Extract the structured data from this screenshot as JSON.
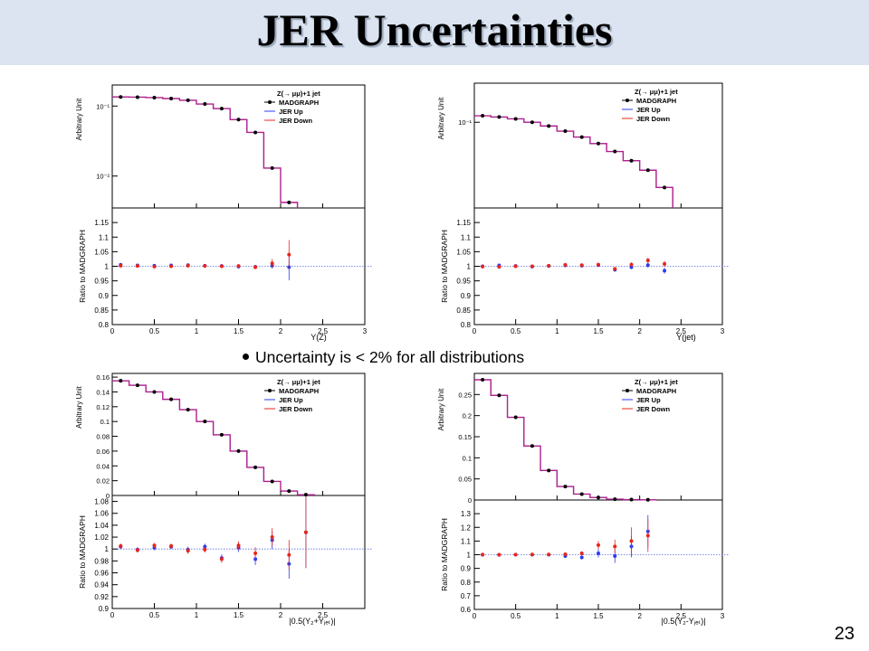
{
  "slide": {
    "title": "JER Uncertainties",
    "bullet": "Uncertainty is < 2% for all distributions",
    "page_number": "23"
  },
  "colors": {
    "nominal": "#000000",
    "jer_up": "#2b3cf2",
    "jer_down": "#e8251c",
    "hist_line": "#b0208c",
    "reference_line": "#5a6ee0"
  },
  "legend": {
    "title": "Z(→ μμ)+1 jet",
    "entries": [
      "MADGRAPH",
      "JER Up",
      "JER Down"
    ]
  },
  "chart_data": [
    {
      "type": "line",
      "panel_position": "top-left",
      "xlabel": "Y(Z)",
      "top": {
        "ylabel": "Arbitrary Unit",
        "yscale": "log",
        "ylim": [
          0.0035,
          0.2
        ],
        "yticks": [
          {
            "v": 0.1,
            "t": "10⁻¹"
          },
          {
            "v": 0.01,
            "t": "10⁻²"
          }
        ],
        "edges": [
          0,
          0.2,
          0.4,
          0.6,
          0.8,
          1.0,
          1.2,
          1.4,
          1.6,
          1.8,
          2.0,
          2.2
        ],
        "values": [
          0.135,
          0.134,
          0.132,
          0.128,
          0.121,
          0.107,
          0.092,
          0.064,
          0.042,
          0.013,
          0.0042
        ]
      },
      "ratio": {
        "ylabel": "Ratio to MADGRAPH",
        "ylim": [
          0.8,
          1.2
        ],
        "yticks": [
          0.8,
          0.85,
          0.9,
          0.95,
          1,
          1.05,
          1.1,
          1.15
        ],
        "yticklabels": [
          "0.8",
          "0.85",
          "0.9",
          "0.95",
          "1",
          "1.05",
          "1.1",
          "1.15"
        ],
        "x": [
          0.1,
          0.3,
          0.5,
          0.7,
          0.9,
          1.1,
          1.3,
          1.5,
          1.7,
          1.9,
          2.1
        ],
        "up": [
          1.005,
          1.003,
          1.002,
          1.003,
          1.004,
          1.002,
          1.001,
          0.999,
          0.998,
          1.002,
          0.997
        ],
        "up_err": [
          0.003,
          0.003,
          0.003,
          0.003,
          0.003,
          0.004,
          0.004,
          0.005,
          0.007,
          0.01,
          0.045
        ],
        "down": [
          1.002,
          1.001,
          0.999,
          1.0,
          1.002,
          1.001,
          1.0,
          1.001,
          0.997,
          1.01,
          1.04
        ],
        "down_err": [
          0.003,
          0.003,
          0.003,
          0.003,
          0.003,
          0.004,
          0.004,
          0.005,
          0.007,
          0.015,
          0.05
        ]
      },
      "xlim": [
        0,
        3
      ],
      "xticks": [
        0,
        0.5,
        1,
        1.5,
        2,
        2.5,
        3
      ],
      "xticklabels": [
        "0",
        "0.5",
        "1",
        "1.5",
        "2",
        "2.5",
        "3"
      ]
    },
    {
      "type": "line",
      "panel_position": "top-right",
      "xlabel": "Y(jet)",
      "top": {
        "ylabel": "Arbitrary Unit",
        "yscale": "log",
        "ylim": [
          0.009,
          0.3
        ],
        "yticks": [
          {
            "v": 0.1,
            "t": "10⁻¹"
          }
        ],
        "edges": [
          0,
          0.2,
          0.4,
          0.6,
          0.8,
          1.0,
          1.2,
          1.4,
          1.6,
          1.8,
          2.0,
          2.2,
          2.4
        ],
        "values": [
          0.12,
          0.116,
          0.11,
          0.1,
          0.09,
          0.078,
          0.066,
          0.055,
          0.044,
          0.034,
          0.026,
          0.016
        ]
      },
      "ratio": {
        "ylabel": "Ratio to MADGRAPH",
        "ylim": [
          0.8,
          1.2
        ],
        "yticks": [
          0.8,
          0.85,
          0.9,
          0.95,
          1,
          1.05,
          1.1,
          1.15
        ],
        "yticklabels": [
          "0.8",
          "0.85",
          "0.9",
          "0.95",
          "1",
          "1.05",
          "1.1",
          "1.15"
        ],
        "x": [
          0.1,
          0.3,
          0.5,
          0.7,
          0.9,
          1.1,
          1.3,
          1.5,
          1.7,
          1.9,
          2.1,
          2.3
        ],
        "up": [
          1.0,
          1.003,
          1.001,
          0.999,
          1.001,
          1.003,
          1.002,
          1.004,
          0.988,
          0.997,
          1.004,
          0.985
        ],
        "up_err": [
          0.004,
          0.004,
          0.004,
          0.004,
          0.004,
          0.004,
          0.005,
          0.005,
          0.006,
          0.007,
          0.009,
          0.01
        ],
        "down": [
          0.999,
          0.998,
          1.0,
          1.0,
          1.002,
          1.005,
          1.004,
          1.006,
          0.991,
          1.006,
          1.02,
          1.008
        ],
        "down_err": [
          0.004,
          0.004,
          0.004,
          0.004,
          0.004,
          0.004,
          0.005,
          0.005,
          0.006,
          0.007,
          0.009,
          0.01
        ]
      },
      "xlim": [
        0,
        3
      ],
      "xticks": [
        0,
        0.5,
        1,
        1.5,
        2,
        2.5,
        3
      ],
      "xticklabels": [
        "0",
        "0.5",
        "1",
        "1.5",
        "2",
        "2.5",
        "3"
      ]
    },
    {
      "type": "line",
      "panel_position": "bottom-left",
      "xlabel": "|0.5(Y₂+Yⱼₑₜ)|",
      "top": {
        "ylabel": "Arbitrary Unit",
        "yscale": "linear",
        "ylim": [
          0,
          0.165
        ],
        "yticks": [
          {
            "v": 0,
            "t": "0"
          },
          {
            "v": 0.02,
            "t": "0.02"
          },
          {
            "v": 0.04,
            "t": "0.04"
          },
          {
            "v": 0.06,
            "t": "0.06"
          },
          {
            "v": 0.08,
            "t": "0.08"
          },
          {
            "v": 0.1,
            "t": "0.1"
          },
          {
            "v": 0.12,
            "t": "0.12"
          },
          {
            "v": 0.14,
            "t": "0.14"
          },
          {
            "v": 0.16,
            "t": "0.16"
          }
        ],
        "edges": [
          0,
          0.2,
          0.4,
          0.6,
          0.8,
          1.0,
          1.2,
          1.4,
          1.6,
          1.8,
          2.0,
          2.2,
          2.4
        ],
        "values": [
          0.155,
          0.149,
          0.14,
          0.13,
          0.116,
          0.1,
          0.082,
          0.06,
          0.038,
          0.019,
          0.006,
          0.001
        ]
      },
      "ratio": {
        "ylabel": "Ratio to MADGRAPH",
        "ylim": [
          0.9,
          1.09
        ],
        "yticks": [
          0.9,
          0.92,
          0.94,
          0.96,
          0.98,
          1,
          1.02,
          1.04,
          1.06,
          1.08
        ],
        "yticklabels": [
          "0.9",
          "0.92",
          "0.94",
          "0.96",
          "0.98",
          "1",
          "1.02",
          "1.04",
          "1.06",
          "1.08"
        ],
        "x": [
          0.1,
          0.3,
          0.5,
          0.7,
          0.9,
          1.1,
          1.3,
          1.5,
          1.7,
          1.9,
          2.1,
          2.3
        ],
        "up": [
          1.004,
          0.999,
          1.002,
          1.004,
          0.999,
          1.004,
          0.985,
          1.002,
          0.983,
          1.015,
          0.975,
          1.028
        ],
        "up_err": [
          0.004,
          0.004,
          0.004,
          0.004,
          0.005,
          0.005,
          0.006,
          0.007,
          0.01,
          0.015,
          0.025,
          0.06
        ],
        "down": [
          1.005,
          0.998,
          1.006,
          1.005,
          0.997,
          0.999,
          0.983,
          1.006,
          0.993,
          1.02,
          0.99,
          1.028
        ],
        "down_err": [
          0.004,
          0.004,
          0.004,
          0.004,
          0.005,
          0.005,
          0.006,
          0.007,
          0.01,
          0.015,
          0.025,
          0.06
        ]
      },
      "xlim": [
        0,
        3
      ],
      "xticks": [
        0,
        0.5,
        1,
        1.5,
        2,
        2.5
      ],
      "xticklabels": [
        "0",
        "0.5",
        "1",
        "1.5",
        "2",
        "2.5"
      ]
    },
    {
      "type": "line",
      "panel_position": "bottom-right",
      "xlabel": "|0.5(Y₂-Yⱼₑₜ)|",
      "top": {
        "ylabel": "Arbitrary Unit",
        "yscale": "linear",
        "ylim": [
          0,
          0.3
        ],
        "yticks": [
          {
            "v": 0,
            "t": "0"
          },
          {
            "v": 0.05,
            "t": "0.05"
          },
          {
            "v": 0.1,
            "t": "0.1"
          },
          {
            "v": 0.15,
            "t": "0.15"
          },
          {
            "v": 0.2,
            "t": "0.2"
          },
          {
            "v": 0.25,
            "t": "0.25"
          }
        ],
        "edges": [
          0,
          0.2,
          0.4,
          0.6,
          0.8,
          1.0,
          1.2,
          1.4,
          1.6,
          1.8,
          2.0,
          2.2
        ],
        "values": [
          0.285,
          0.248,
          0.196,
          0.128,
          0.07,
          0.032,
          0.014,
          0.006,
          0.002,
          0.001,
          0.0005
        ]
      },
      "ratio": {
        "ylabel": "Ratio to MADGRAPH",
        "ylim": [
          0.6,
          1.4
        ],
        "yticks": [
          0.6,
          0.7,
          0.8,
          0.9,
          1,
          1.1,
          1.2,
          1.3
        ],
        "yticklabels": [
          "0.6",
          "0.7",
          "0.8",
          "0.9",
          "1",
          "1.1",
          "1.2",
          "1.3"
        ],
        "x": [
          0.1,
          0.3,
          0.5,
          0.7,
          0.9,
          1.1,
          1.3,
          1.5,
          1.7,
          1.9,
          2.1
        ],
        "up": [
          1.0,
          0.999,
          1.0,
          1.0,
          1.0,
          0.99,
          0.98,
          1.01,
          0.99,
          1.06,
          1.17
        ],
        "up_err": [
          0.003,
          0.003,
          0.004,
          0.005,
          0.007,
          0.01,
          0.015,
          0.03,
          0.05,
          0.08,
          0.12
        ],
        "down": [
          1.001,
          1.0,
          1.001,
          1.002,
          1.002,
          1.003,
          1.01,
          1.07,
          1.06,
          1.1,
          1.14
        ],
        "down_err": [
          0.003,
          0.003,
          0.004,
          0.005,
          0.007,
          0.01,
          0.015,
          0.03,
          0.05,
          0.1,
          0.12
        ]
      },
      "xlim": [
        0,
        3
      ],
      "xticks": [
        0,
        0.5,
        1,
        1.5,
        2,
        2.5,
        3
      ],
      "xticklabels": [
        "0",
        "0.5",
        "1",
        "1.5",
        "2",
        "2.5",
        "3"
      ]
    }
  ]
}
